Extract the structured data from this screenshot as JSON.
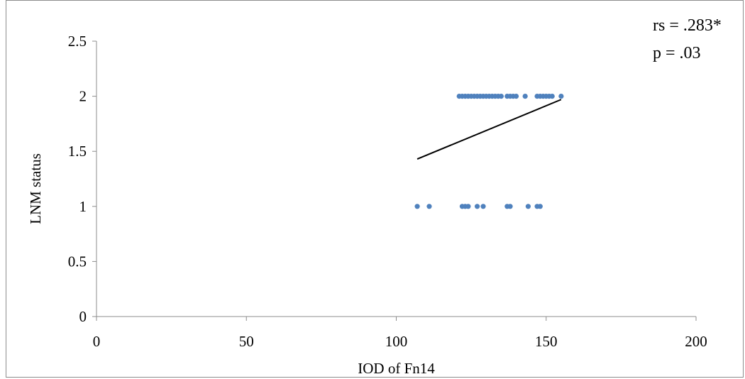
{
  "chart_data": {
    "type": "scatter",
    "xlabel": "IOD of Fn14",
    "ylabel": "LNM status",
    "xlim": [
      0,
      200
    ],
    "ylim": [
      0,
      2.5
    ],
    "x_ticks": [
      "0",
      "50",
      "100",
      "150",
      "200"
    ],
    "y_ticks": [
      "0",
      "0.5",
      "1",
      "1.5",
      "2",
      "2.5"
    ],
    "grid": false,
    "legend": "none",
    "marker_color": "#4f81bd",
    "series": [
      {
        "points": [
          {
            "x": 107,
            "y": 1
          },
          {
            "x": 111,
            "y": 1
          },
          {
            "x": 122,
            "y": 1
          },
          {
            "x": 123,
            "y": 1
          },
          {
            "x": 124,
            "y": 1
          },
          {
            "x": 127,
            "y": 1
          },
          {
            "x": 129,
            "y": 1
          },
          {
            "x": 137,
            "y": 1
          },
          {
            "x": 138,
            "y": 1
          },
          {
            "x": 144,
            "y": 1
          },
          {
            "x": 147,
            "y": 1
          },
          {
            "x": 148,
            "y": 1
          },
          {
            "x": 121,
            "y": 2
          },
          {
            "x": 122,
            "y": 2
          },
          {
            "x": 123,
            "y": 2
          },
          {
            "x": 124,
            "y": 2
          },
          {
            "x": 125,
            "y": 2
          },
          {
            "x": 126,
            "y": 2
          },
          {
            "x": 127,
            "y": 2
          },
          {
            "x": 128,
            "y": 2
          },
          {
            "x": 129,
            "y": 2
          },
          {
            "x": 130,
            "y": 2
          },
          {
            "x": 131,
            "y": 2
          },
          {
            "x": 132,
            "y": 2
          },
          {
            "x": 133,
            "y": 2
          },
          {
            "x": 134,
            "y": 2
          },
          {
            "x": 135,
            "y": 2
          },
          {
            "x": 137,
            "y": 2
          },
          {
            "x": 138,
            "y": 2
          },
          {
            "x": 139,
            "y": 2
          },
          {
            "x": 140,
            "y": 2
          },
          {
            "x": 143,
            "y": 2
          },
          {
            "x": 147,
            "y": 2
          },
          {
            "x": 148,
            "y": 2
          },
          {
            "x": 149,
            "y": 2
          },
          {
            "x": 150,
            "y": 2
          },
          {
            "x": 151,
            "y": 2
          },
          {
            "x": 152,
            "y": 2
          },
          {
            "x": 155,
            "y": 2
          }
        ]
      }
    ],
    "trendline": {
      "x": [
        107,
        155
      ],
      "y": [
        1.43,
        1.97
      ],
      "color": "#000000"
    },
    "annotations": [
      "rs = .283*",
      "p = .03"
    ]
  }
}
